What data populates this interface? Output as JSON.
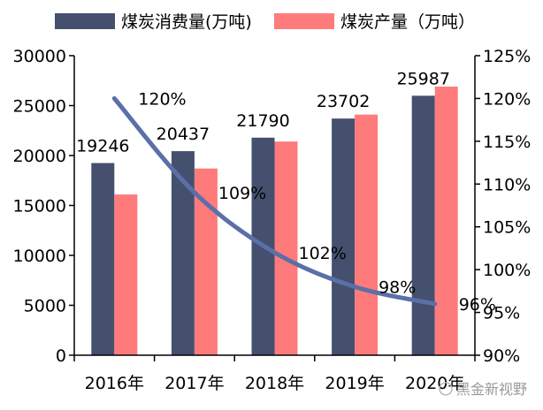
{
  "chart_data": {
    "type": "bar+line",
    "categories": [
      "2016年",
      "2017年",
      "2018年",
      "2019年",
      "2020年"
    ],
    "series": [
      {
        "name": "煤炭消费量(万吨)",
        "type": "bar",
        "axis": "left",
        "color": "#44506E",
        "values": [
          19246,
          20437,
          21790,
          23702,
          25987
        ],
        "labels": [
          "19246",
          "20437",
          "21790",
          "23702",
          "25987"
        ]
      },
      {
        "name": "煤炭产量（万吨）",
        "type": "bar",
        "axis": "left",
        "color": "#FF7B7B",
        "values": [
          16100,
          18700,
          21400,
          24100,
          26900
        ]
      },
      {
        "type": "line",
        "axis": "right",
        "color": "#5B6FA8",
        "values": [
          120,
          109,
          102,
          98,
          96
        ],
        "labels": [
          "120%",
          "109%",
          "102%",
          "98%",
          "96%"
        ]
      }
    ],
    "left_axis": {
      "ylim": [
        0,
        30000
      ],
      "ticks": [
        "0",
        "5000",
        "10000",
        "15000",
        "20000",
        "25000",
        "30000"
      ]
    },
    "right_axis": {
      "ylim": [
        90,
        125
      ],
      "ticks": [
        "90%",
        "95%",
        "100%",
        "105%",
        "110%",
        "115%",
        "120%",
        "125%"
      ]
    },
    "legend_placement": "top",
    "grid": false
  },
  "watermark": "黑金新视野"
}
